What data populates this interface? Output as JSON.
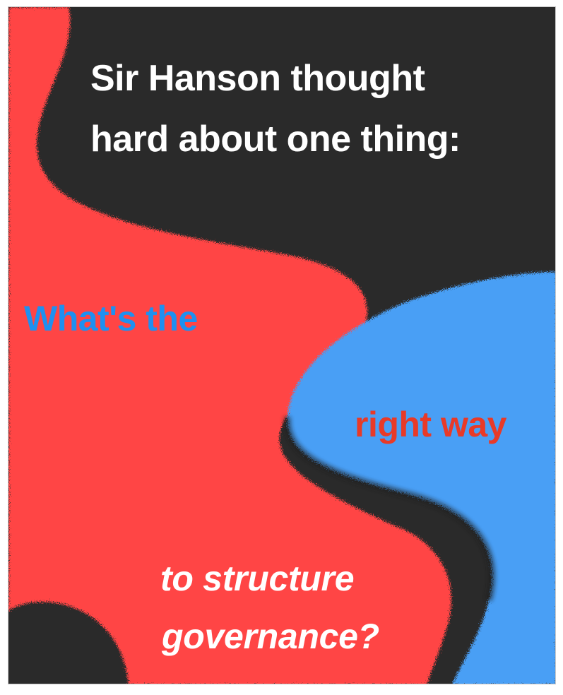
{
  "poster": {
    "headline": {
      "line1": "Sir Hanson thought",
      "line2": "hard about one thing:"
    },
    "question": {
      "part1": "What's the",
      "part2": "right way",
      "part3_line1": "to structure",
      "part3_line2": "governance?"
    }
  },
  "colors": {
    "background_dark": "#2a2a2a",
    "red": "#ff4545",
    "blue": "#4a9ff5",
    "text_white": "#ffffff",
    "text_blue": "#1e90f0",
    "text_red": "#e83a28"
  }
}
